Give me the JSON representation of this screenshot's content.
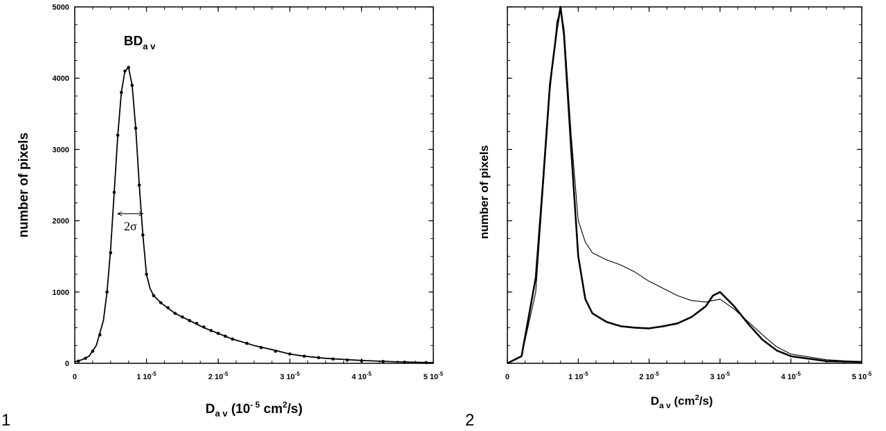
{
  "figure": {
    "panel_numbers": [
      "1",
      "2"
    ]
  },
  "chart_data": [
    {
      "type": "line",
      "panel": "1",
      "xlabel": {
        "main": "D",
        "sub": "a v",
        "rest": " (10",
        "exp": "- 5",
        "unit": " cm",
        "exp2": "2",
        "tail": "/s)"
      },
      "ylabel": "number of pixels",
      "xlim": [
        0,
        5
      ],
      "ylim": [
        0,
        5000
      ],
      "x_ticks": [
        {
          "value": 0,
          "base": "0",
          "exp": ""
        },
        {
          "value": 1,
          "base": "1 10",
          "exp": "-5"
        },
        {
          "value": 2,
          "base": "2 10",
          "exp": "-5"
        },
        {
          "value": 3,
          "base": "3 10",
          "exp": "-5"
        },
        {
          "value": 4,
          "base": "4 10",
          "exp": "-5"
        },
        {
          "value": 5,
          "base": "5 10",
          "exp": "-5"
        }
      ],
      "y_ticks": [
        {
          "value": 0,
          "label": "0"
        },
        {
          "value": 1000,
          "label": "1000"
        },
        {
          "value": 2000,
          "label": "2000"
        },
        {
          "value": 3000,
          "label": "3000"
        },
        {
          "value": 4000,
          "label": "4000"
        },
        {
          "value": 5000,
          "label": "5000"
        }
      ],
      "peak_label": {
        "main": "BD",
        "sub": "a v",
        "x": 0.75,
        "y": 4150
      },
      "width_annotation": {
        "text": "2σ",
        "x0": 0.6,
        "x1": 0.95,
        "y": 2050
      },
      "series": [
        {
          "style": "fit-line",
          "x": [
            0,
            0.1,
            0.2,
            0.3,
            0.4,
            0.45,
            0.5,
            0.55,
            0.6,
            0.65,
            0.7,
            0.75,
            0.8,
            0.85,
            0.9,
            0.95,
            1.0,
            1.05,
            1.1,
            1.2,
            1.4,
            1.6,
            1.8,
            2.0,
            2.2,
            2.5,
            2.8,
            3.0,
            3.2,
            3.5,
            4.0,
            4.5,
            5.0
          ],
          "values": [
            20,
            50,
            100,
            250,
            600,
            1000,
            1600,
            2400,
            3200,
            3800,
            4100,
            4150,
            3900,
            3300,
            2500,
            1800,
            1250,
            1050,
            950,
            850,
            700,
            600,
            500,
            420,
            340,
            250,
            180,
            130,
            100,
            70,
            40,
            20,
            10
          ]
        },
        {
          "style": "points",
          "x": [
            0.05,
            0.15,
            0.25,
            0.35,
            0.45,
            0.5,
            0.55,
            0.6,
            0.65,
            0.7,
            0.75,
            0.8,
            0.85,
            0.9,
            0.95,
            1.0,
            1.1,
            1.2,
            1.3,
            1.4,
            1.5,
            1.6,
            1.7,
            1.8,
            1.9,
            2.0,
            2.1,
            2.2,
            2.4,
            2.6,
            2.8,
            3.0,
            3.2,
            3.4,
            3.6,
            3.8,
            4.0,
            4.3,
            4.6,
            4.9
          ],
          "values": [
            30,
            70,
            170,
            400,
            1000,
            1550,
            2400,
            3200,
            3800,
            4100,
            4150,
            3900,
            3300,
            2500,
            1800,
            1250,
            950,
            850,
            780,
            700,
            650,
            600,
            560,
            510,
            460,
            420,
            380,
            340,
            280,
            220,
            170,
            130,
            100,
            80,
            60,
            45,
            35,
            25,
            15,
            10
          ]
        }
      ]
    },
    {
      "type": "line",
      "panel": "2",
      "xlabel": {
        "main": "D",
        "sub": "a v",
        "rest": " (cm",
        "exp2": "2",
        "tail": "/s)"
      },
      "ylabel": "number of pixels",
      "xlim": [
        0,
        5
      ],
      "x_ticks": [
        {
          "value": 0,
          "base": "0",
          "exp": ""
        },
        {
          "value": 1,
          "base": "1 10",
          "exp": "-5"
        },
        {
          "value": 2,
          "base": "2 10",
          "exp": "-5"
        },
        {
          "value": 3,
          "base": "3 10",
          "exp": "-5"
        },
        {
          "value": 4,
          "base": "4 10",
          "exp": "-5"
        },
        {
          "value": 5,
          "base": "5 10",
          "exp": "-5"
        }
      ],
      "y_ticks": [],
      "series": [
        {
          "style": "thin-line",
          "x": [
            0,
            0.2,
            0.4,
            0.5,
            0.6,
            0.7,
            0.75,
            0.8,
            0.9,
            1.0,
            1.1,
            1.2,
            1.4,
            1.6,
            1.8,
            2.0,
            2.2,
            2.4,
            2.6,
            2.8,
            3.0,
            3.2,
            3.4,
            3.6,
            3.8,
            4.0,
            4.5,
            5.0
          ],
          "values": [
            0,
            100,
            1000,
            2400,
            3800,
            4800,
            4950,
            4700,
            3200,
            2000,
            1700,
            1550,
            1450,
            1380,
            1280,
            1150,
            1050,
            950,
            880,
            860,
            900,
            760,
            580,
            400,
            230,
            130,
            50,
            20
          ]
        },
        {
          "style": "thick-line",
          "x": [
            0,
            0.2,
            0.4,
            0.5,
            0.6,
            0.7,
            0.75,
            0.8,
            0.9,
            1.0,
            1.1,
            1.2,
            1.4,
            1.6,
            1.8,
            2.0,
            2.2,
            2.4,
            2.6,
            2.8,
            2.9,
            3.0,
            3.1,
            3.2,
            3.4,
            3.6,
            3.8,
            4.0,
            4.5,
            5.0
          ],
          "values": [
            0,
            100,
            1200,
            2500,
            3900,
            4700,
            5000,
            4600,
            3000,
            1500,
            900,
            700,
            580,
            520,
            500,
            490,
            520,
            560,
            650,
            800,
            950,
            1000,
            900,
            800,
            550,
            330,
            180,
            100,
            30,
            20
          ]
        }
      ]
    }
  ]
}
